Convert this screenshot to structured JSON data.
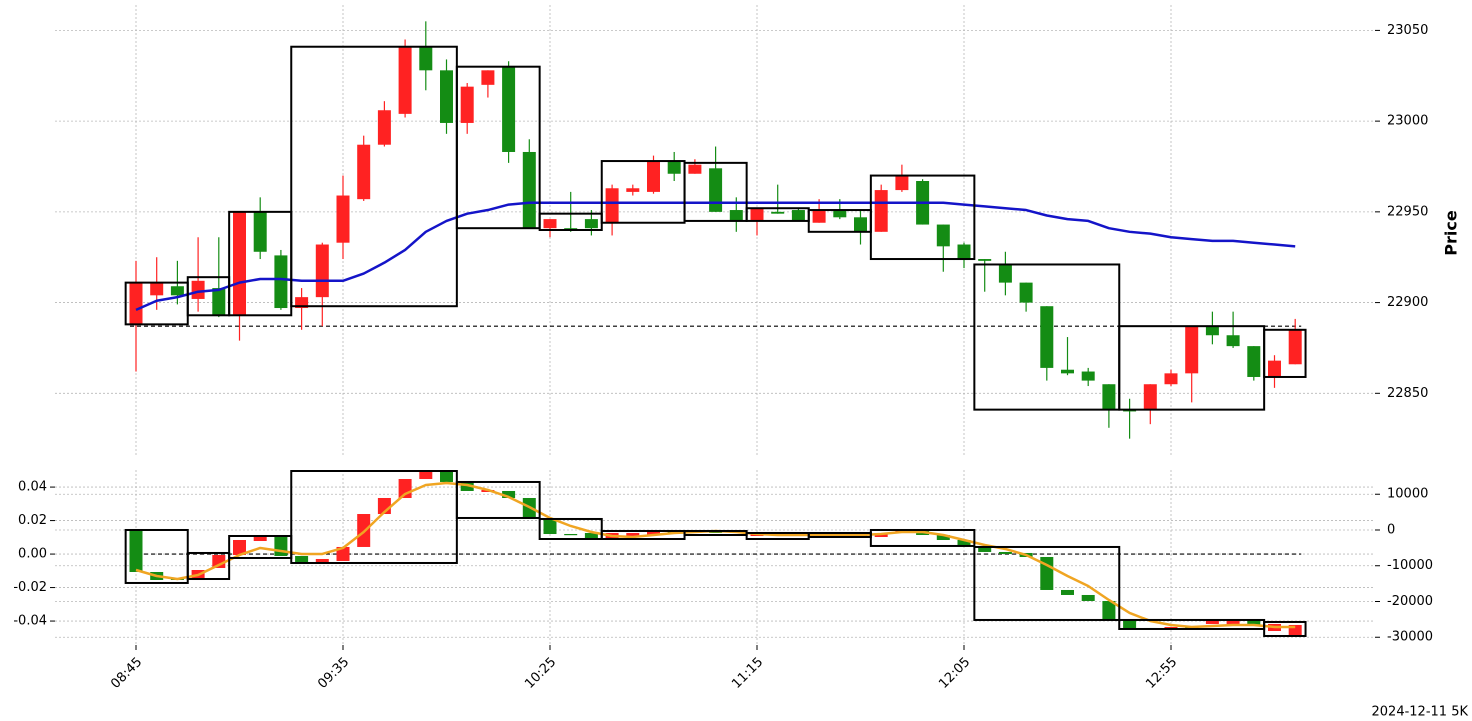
{
  "chart_data": {
    "type": "candlestick",
    "footnote": "2024-12-11 5K",
    "categories": [
      "08:45",
      null,
      null,
      null,
      null,
      null,
      null,
      null,
      null,
      null,
      "09:35",
      null,
      null,
      null,
      null,
      null,
      null,
      null,
      null,
      null,
      "10:25",
      null,
      null,
      null,
      null,
      null,
      null,
      null,
      null,
      null,
      "11:15",
      null,
      null,
      null,
      null,
      null,
      null,
      null,
      null,
      null,
      "12:05",
      null,
      null,
      null,
      null,
      null,
      null,
      null,
      null,
      null,
      "12:55",
      null,
      null,
      null,
      null,
      null,
      null
    ],
    "up_color": "#ff2222",
    "down_color": "#148c14",
    "grid": true,
    "panels": [
      {
        "ylabel": "Price",
        "ylim": [
          22816,
          23064
        ],
        "yticks": [
          22850,
          22900,
          22950,
          23000,
          23050
        ],
        "candles": {
          "open": [
            22888,
            22904,
            22909,
            22902,
            22908,
            22893,
            22950,
            22926,
            22897,
            22903,
            22933,
            22957,
            22987,
            23004,
            23041,
            23028,
            22999,
            23020,
            23030,
            22983,
            22941,
            22941,
            22946,
            22944,
            22961,
            22961,
            22978,
            22971,
            22974,
            22951,
            22945,
            22950,
            22951,
            22944,
            22951,
            22947,
            22939,
            22962,
            22967,
            22943,
            22932,
            22924,
            22921,
            22911,
            22898,
            22863,
            22862,
            22855,
            22841,
            22841,
            22855,
            22861,
            22887,
            22882,
            22876,
            22859,
            22866
          ],
          "high": [
            22923,
            22925,
            22923,
            22936,
            22936,
            22950,
            22958,
            22929,
            22908,
            22933,
            22970,
            22992,
            23011,
            23045,
            23055,
            23034,
            23021,
            23028,
            23033,
            22990,
            22946,
            22961,
            22951,
            22965,
            22965,
            22981,
            22983,
            22979,
            22986,
            22958,
            22952,
            22965,
            22952,
            22957,
            22957,
            22951,
            22965,
            22976,
            22968,
            22943,
            22933,
            22924,
            22928,
            22911,
            22898,
            22881,
            22864,
            22855,
            22847,
            22855,
            22863,
            22887,
            22895,
            22895,
            22876,
            22871,
            22891
          ],
          "low": [
            22862,
            22896,
            22899,
            22895,
            22892,
            22879,
            22924,
            22896,
            22885,
            22887,
            22924,
            22956,
            22986,
            23002,
            23017,
            22993,
            22993,
            23013,
            22977,
            22941,
            22936,
            22939,
            22937,
            22937,
            22959,
            22960,
            22967,
            22971,
            22950,
            22939,
            22937,
            22949,
            22945,
            22944,
            22946,
            22932,
            22939,
            22961,
            22943,
            22917,
            22919,
            22906,
            22904,
            22895,
            22857,
            22860,
            22854,
            22831,
            22825,
            22833,
            22854,
            22845,
            22877,
            22875,
            22857,
            22853,
            22866
          ],
          "close": [
            22911,
            22911,
            22904,
            22912,
            22893,
            22950,
            22928,
            22897,
            22903,
            22932,
            22959,
            22987,
            23006,
            23041,
            23028,
            22999,
            23019,
            23028,
            22983,
            22941,
            22946,
            22940,
            22941,
            22963,
            22963,
            22978,
            22971,
            22976,
            22950,
            22945,
            22952,
            22949,
            22945,
            22951,
            22947,
            22939,
            22962,
            22970,
            22943,
            22931,
            22924,
            22923,
            22911,
            22900,
            22864,
            22861,
            22857,
            22841,
            22840,
            22855,
            22861,
            22887,
            22882,
            22876,
            22859,
            22868,
            22885
          ]
        },
        "ma": {
          "color": "#1414c8",
          "values": [
            22896,
            22901,
            22903,
            22906,
            22907,
            22911,
            22913,
            22913,
            22912,
            22912,
            22912,
            22916,
            22922,
            22929,
            22939,
            22945,
            22949,
            22951,
            22954,
            22955,
            22955,
            22955,
            22955,
            22955,
            22955,
            22955,
            22955,
            22955,
            22955,
            22955,
            22955,
            22955,
            22955,
            22955,
            22955,
            22955,
            22955,
            22955,
            22955,
            22955,
            22954,
            22953,
            22952,
            22951,
            22948,
            22946,
            22945,
            22941,
            22939,
            22938,
            22936,
            22935,
            22934,
            22934,
            22933,
            22932,
            22931
          ]
        },
        "boxes": [
          {
            "start": 0,
            "end": 2,
            "top": 22911,
            "bottom": 22888
          },
          {
            "start": 3,
            "end": 4,
            "top": 22914,
            "bottom": 22893
          },
          {
            "start": 5,
            "end": 7,
            "top": 22950,
            "bottom": 22893
          },
          {
            "start": 8,
            "end": 15,
            "top": 23041,
            "bottom": 22898
          },
          {
            "start": 16,
            "end": 19,
            "top": 23030,
            "bottom": 22941
          },
          {
            "start": 20,
            "end": 22,
            "top": 22949,
            "bottom": 22940
          },
          {
            "start": 23,
            "end": 26,
            "top": 22978,
            "bottom": 22944
          },
          {
            "start": 27,
            "end": 29,
            "top": 22977,
            "bottom": 22945
          },
          {
            "start": 30,
            "end": 32,
            "top": 22952,
            "bottom": 22945
          },
          {
            "start": 33,
            "end": 35,
            "top": 22951,
            "bottom": 22939
          },
          {
            "start": 36,
            "end": 40,
            "top": 22970,
            "bottom": 22924
          },
          {
            "start": 41,
            "end": 47,
            "top": 22921,
            "bottom": 22841
          },
          {
            "start": 48,
            "end": 54,
            "top": 22887,
            "bottom": 22841
          },
          {
            "start": 55,
            "end": 56,
            "top": 22885,
            "bottom": 22859
          }
        ],
        "hline": 22887
      },
      {
        "ylim": [
          -0.0543,
          0.0502
        ],
        "yticks": [
          -0.04,
          -0.02,
          {
            "value": 0,
            "label": "0.00"
          },
          0.02,
          0.04
        ],
        "y2lim": [
          -32170,
          16780
        ],
        "y2ticks": [
          -30000,
          -20000,
          -10000,
          0,
          10000
        ],
        "candles": {
          "axis": "y2",
          "open": [
            0,
            -11750,
            -13430,
            -13990,
            -10630,
            -6990,
            -3080,
            -1960,
            -7270,
            -8950,
            -8670,
            -4750,
            4470,
            8950,
            14260,
            16500,
            13430,
            10630,
            10910,
            8950,
            3080,
            -1120,
            -840,
            -2240,
            -1680,
            -1400,
            -280,
            -840,
            -280,
            -280,
            -1680,
            -840,
            -1120,
            -1680,
            -1120,
            -1120,
            -1960,
            -840,
            -280,
            -1400,
            -2800,
            -4750,
            -6150,
            -6430,
            -7550,
            -16780,
            -18180,
            -19860,
            -25170,
            -27410,
            -27690,
            -27130,
            -26290,
            -26290,
            -25170,
            -28250,
            -29370
          ],
          "close": [
            -11750,
            -13990,
            -13990,
            -11190,
            -6990,
            -2800,
            -1960,
            -7270,
            -8950,
            -8110,
            -4750,
            4470,
            8950,
            14260,
            16500,
            13430,
            10910,
            11190,
            8950,
            3080,
            -1120,
            -1400,
            -2240,
            -840,
            -840,
            -280,
            -840,
            -280,
            -840,
            -840,
            -840,
            -1400,
            -1680,
            -1120,
            -1400,
            -1960,
            -840,
            -280,
            -1400,
            -2800,
            -4470,
            -6150,
            -6710,
            -7550,
            -16780,
            -18180,
            -19860,
            -25170,
            -27690,
            -27690,
            -27130,
            -27690,
            -25170,
            -25450,
            -26570,
            -26290,
            -26570
          ]
        },
        "line": {
          "axis": "y2",
          "color": "#f0a522",
          "values": [
            -11190,
            -12870,
            -13710,
            -12590,
            -9790,
            -6990,
            -5030,
            -5870,
            -6710,
            -6710,
            -5030,
            -560,
            5030,
            10070,
            12590,
            13150,
            12590,
            11190,
            9230,
            6430,
            3360,
            1120,
            -560,
            -1680,
            -1960,
            -1400,
            -840,
            -560,
            -280,
            -560,
            -1120,
            -1400,
            -1400,
            -1400,
            -1400,
            -1400,
            -1120,
            -560,
            -560,
            -1400,
            -2800,
            -4200,
            -5310,
            -6990,
            -9790,
            -12870,
            -15660,
            -19580,
            -23210,
            -25450,
            -26570,
            -27130,
            -26850,
            -26570,
            -26570,
            -27130,
            -27130
          ]
        },
        "boxes": {
          "axis": "y2",
          "items": [
            {
              "start": 0,
              "end": 2,
              "top": 0,
              "bottom": -14820
            },
            {
              "start": 3,
              "end": 4,
              "top": -6430,
              "bottom": -13710
            },
            {
              "start": 5,
              "end": 7,
              "top": -1680,
              "bottom": -7830
            },
            {
              "start": 8,
              "end": 15,
              "top": 16500,
              "bottom": -9230
            },
            {
              "start": 16,
              "end": 19,
              "top": 13430,
              "bottom": 3360
            },
            {
              "start": 20,
              "end": 22,
              "top": 3080,
              "bottom": -2520
            },
            {
              "start": 23,
              "end": 26,
              "top": -280,
              "bottom": -2520
            },
            {
              "start": 27,
              "end": 29,
              "top": -280,
              "bottom": -1400
            },
            {
              "start": 30,
              "end": 32,
              "top": -840,
              "bottom": -2520
            },
            {
              "start": 33,
              "end": 35,
              "top": -840,
              "bottom": -1960
            },
            {
              "start": 36,
              "end": 40,
              "top": 0,
              "bottom": -4470
            },
            {
              "start": 41,
              "end": 47,
              "top": -4750,
              "bottom": -25170
            },
            {
              "start": 48,
              "end": 54,
              "top": -25170,
              "bottom": -27690
            },
            {
              "start": 55,
              "end": 56,
              "top": -25730,
              "bottom": -29650
            }
          ]
        },
        "hline": 0
      }
    ]
  }
}
